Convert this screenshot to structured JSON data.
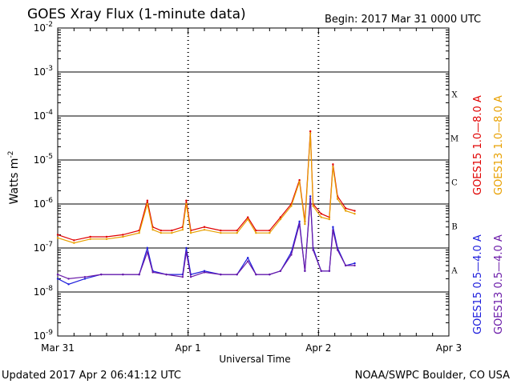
{
  "chart_data": {
    "type": "line",
    "title": "GOES Xray Flux (1-minute data)",
    "begin": "Begin:  2017 Mar 31 0000 UTC",
    "xlabel": "Universal Time",
    "ylabel": "Watts m",
    "ylabel_sup": "-2",
    "y_scale": "log",
    "ylim": [
      1e-09,
      0.01
    ],
    "xlim": [
      "2017-03-31 00:00",
      "2017-04-03 00:00"
    ],
    "x_ticks": [
      "Mar 31",
      "Apr 1",
      "Apr 2",
      "Apr 3"
    ],
    "y_ticks": [
      {
        "base": "10",
        "exp": "-2"
      },
      {
        "base": "10",
        "exp": "-3"
      },
      {
        "base": "10",
        "exp": "-4"
      },
      {
        "base": "10",
        "exp": "-5"
      },
      {
        "base": "10",
        "exp": "-6"
      },
      {
        "base": "10",
        "exp": "-7"
      },
      {
        "base": "10",
        "exp": "-8"
      },
      {
        "base": "10",
        "exp": "-9"
      }
    ],
    "flare_classes": [
      "X",
      "M",
      "C",
      "B",
      "A"
    ],
    "legend_long": [
      {
        "text": "GOES15 1.0—8.0 A",
        "color": "#e00000"
      },
      {
        "text": "GOES13 1.0—8.0 A",
        "color": "#e8a000"
      }
    ],
    "legend_short": [
      {
        "text": "GOES15 0.5—4.0 A",
        "color": "#1c1cdc"
      },
      {
        "text": "GOES13 0.5—4.0 A",
        "color": "#6a1aa8"
      }
    ],
    "series": [
      {
        "name": "GOES15 1.0—8.0 A",
        "color": "#e00000",
        "x": [
          "2017-03-31 00:00",
          "2017-03-31 03:00",
          "2017-03-31 06:00",
          "2017-03-31 09:00",
          "2017-03-31 12:00",
          "2017-03-31 15:00",
          "2017-03-31 16:30",
          "2017-03-31 17:30",
          "2017-03-31 19:00",
          "2017-03-31 21:00",
          "2017-03-31 23:00",
          "2017-03-31 23:40",
          "2017-04-01 00:30",
          "2017-04-01 03:00",
          "2017-04-01 06:00",
          "2017-04-01 09:00",
          "2017-04-01 11:00",
          "2017-04-01 12:30",
          "2017-04-01 15:00",
          "2017-04-01 17:00",
          "2017-04-01 19:00",
          "2017-04-01 20:30",
          "2017-04-01 21:30",
          "2017-04-01 22:30",
          "2017-04-01 23:00",
          "2017-04-02 00:30",
          "2017-04-02 02:00",
          "2017-04-02 02:40",
          "2017-04-02 03:30",
          "2017-04-02 05:00",
          "2017-04-02 06:40"
        ],
        "y": [
          2e-07,
          1.5e-07,
          1.8e-07,
          1.8e-07,
          2e-07,
          2.5e-07,
          1.2e-06,
          3e-07,
          2.5e-07,
          2.5e-07,
          3e-07,
          1.2e-06,
          2.5e-07,
          3e-07,
          2.5e-07,
          2.5e-07,
          5e-07,
          2.5e-07,
          2.5e-07,
          5e-07,
          1e-06,
          3.5e-06,
          4e-07,
          4.5e-05,
          1e-06,
          6e-07,
          5e-07,
          8e-06,
          1.5e-06,
          8e-07,
          7e-07
        ]
      },
      {
        "name": "GOES13 1.0—8.0 A",
        "color": "#e8a000",
        "x": [
          "2017-03-31 00:00",
          "2017-03-31 03:00",
          "2017-03-31 06:00",
          "2017-03-31 09:00",
          "2017-03-31 12:00",
          "2017-03-31 15:00",
          "2017-03-31 16:30",
          "2017-03-31 17:30",
          "2017-03-31 19:00",
          "2017-03-31 21:00",
          "2017-03-31 23:00",
          "2017-03-31 23:40",
          "2017-04-01 00:30",
          "2017-04-01 03:00",
          "2017-04-01 06:00",
          "2017-04-01 09:00",
          "2017-04-01 11:00",
          "2017-04-01 12:30",
          "2017-04-01 15:00",
          "2017-04-01 17:00",
          "2017-04-01 19:00",
          "2017-04-01 20:30",
          "2017-04-01 21:30",
          "2017-04-01 22:30",
          "2017-04-01 23:00",
          "2017-04-02 00:30",
          "2017-04-02 02:00",
          "2017-04-02 02:40",
          "2017-04-02 03:30",
          "2017-04-02 05:00",
          "2017-04-02 06:40"
        ],
        "y": [
          1.7e-07,
          1.3e-07,
          1.6e-07,
          1.6e-07,
          1.8e-07,
          2.2e-07,
          1e-06,
          2.6e-07,
          2.2e-07,
          2.2e-07,
          2.6e-07,
          1e-06,
          2.2e-07,
          2.6e-07,
          2.2e-07,
          2.2e-07,
          4.5e-07,
          2.2e-07,
          2.2e-07,
          4.5e-07,
          9e-07,
          3.2e-06,
          3.5e-07,
          4e-05,
          9e-07,
          5e-07,
          4.5e-07,
          7e-06,
          1.3e-06,
          7e-07,
          6e-07
        ]
      },
      {
        "name": "GOES15 0.5—4.0 A",
        "color": "#1c1cdc",
        "x": [
          "2017-03-31 00:00",
          "2017-03-31 02:00",
          "2017-03-31 05:00",
          "2017-03-31 08:00",
          "2017-03-31 12:00",
          "2017-03-31 15:00",
          "2017-03-31 16:30",
          "2017-03-31 17:30",
          "2017-03-31 20:00",
          "2017-03-31 23:00",
          "2017-03-31 23:40",
          "2017-04-01 00:30",
          "2017-04-01 03:00",
          "2017-04-01 06:00",
          "2017-04-01 09:00",
          "2017-04-01 11:00",
          "2017-04-01 12:30",
          "2017-04-01 15:00",
          "2017-04-01 17:00",
          "2017-04-01 19:00",
          "2017-04-01 20:30",
          "2017-04-01 21:30",
          "2017-04-01 22:30",
          "2017-04-01 23:00",
          "2017-04-02 00:30",
          "2017-04-02 02:00",
          "2017-04-02 02:40",
          "2017-04-02 03:30",
          "2017-04-02 05:00",
          "2017-04-02 06:40"
        ],
        "y": [
          2e-08,
          1.5e-08,
          2e-08,
          2.5e-08,
          2.5e-08,
          2.5e-08,
          1e-07,
          3e-08,
          2.5e-08,
          2.5e-08,
          1e-07,
          2.5e-08,
          3e-08,
          2.5e-08,
          2.5e-08,
          6e-08,
          2.5e-08,
          2.5e-08,
          3e-08,
          8e-08,
          4e-07,
          3e-08,
          1.5e-06,
          1e-07,
          3e-08,
          3e-08,
          3e-07,
          1e-07,
          4e-08,
          4.5e-08
        ]
      },
      {
        "name": "GOES13 0.5—4.0 A",
        "color": "#6a1aa8",
        "x": [
          "2017-03-31 00:00",
          "2017-03-31 02:00",
          "2017-03-31 05:00",
          "2017-03-31 08:00",
          "2017-03-31 12:00",
          "2017-03-31 15:00",
          "2017-03-31 16:30",
          "2017-03-31 17:30",
          "2017-03-31 20:00",
          "2017-03-31 23:00",
          "2017-03-31 23:40",
          "2017-04-01 00:30",
          "2017-04-01 03:00",
          "2017-04-01 06:00",
          "2017-04-01 09:00",
          "2017-04-01 11:00",
          "2017-04-01 12:30",
          "2017-04-01 15:00",
          "2017-04-01 17:00",
          "2017-04-01 19:00",
          "2017-04-01 20:30",
          "2017-04-01 21:30",
          "2017-04-01 22:30",
          "2017-04-01 23:00",
          "2017-04-02 00:30",
          "2017-04-02 02:00",
          "2017-04-02 02:40",
          "2017-04-02 03:30",
          "2017-04-02 05:00",
          "2017-04-02 06:40"
        ],
        "y": [
          2.5e-08,
          2e-08,
          2.2e-08,
          2.5e-08,
          2.5e-08,
          2.5e-08,
          8e-08,
          2.8e-08,
          2.5e-08,
          2.2e-08,
          8e-08,
          2.2e-08,
          2.8e-08,
          2.5e-08,
          2.5e-08,
          5e-08,
          2.5e-08,
          2.5e-08,
          3e-08,
          7e-08,
          3.5e-07,
          3e-08,
          1.3e-06,
          9e-08,
          3e-08,
          3e-08,
          2.5e-07,
          9e-08,
          4e-08,
          4e-08
        ]
      }
    ]
  },
  "footer": {
    "updated": "Updated 2017 Apr  2 06:41:12 UTC",
    "source": "NOAA/SWPC Boulder, CO USA"
  }
}
